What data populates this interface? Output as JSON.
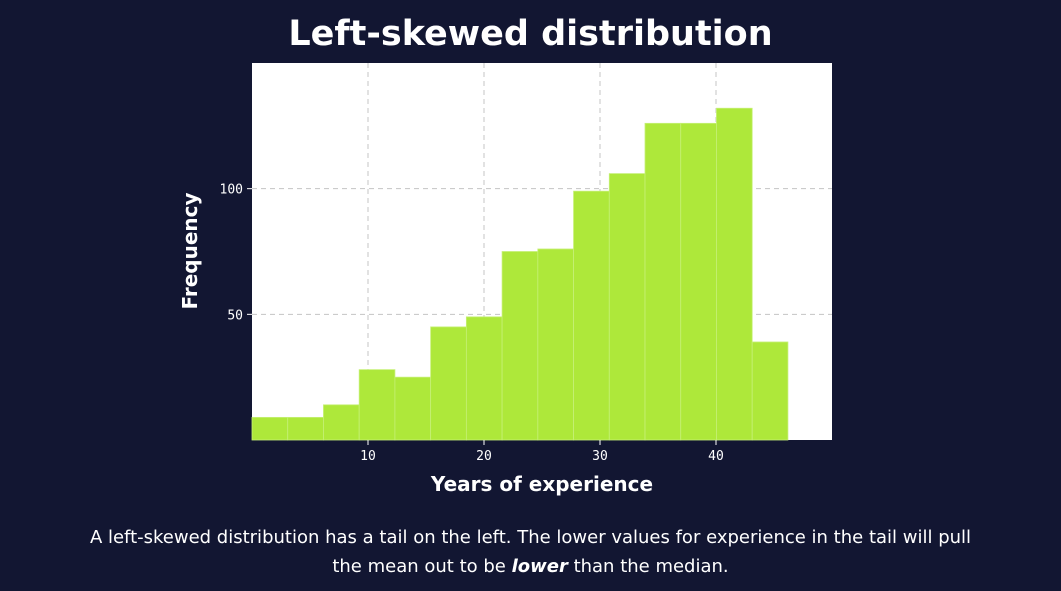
{
  "chart_data": {
    "type": "bar",
    "title": "Left-skewed distribution",
    "xlabel": "Years of experience",
    "ylabel": "Frequency",
    "xlim": [
      0,
      50
    ],
    "ylim": [
      0,
      150
    ],
    "xticks": [
      10,
      20,
      30,
      40
    ],
    "yticks": [
      50,
      100
    ],
    "xtick_labels": [
      "10",
      "20",
      "30",
      "40"
    ],
    "ytick_labels": [
      "50",
      "100"
    ],
    "grid": true,
    "bin_width": 3.08,
    "bin_start": 0,
    "values": [
      9,
      9,
      14,
      28,
      25,
      45,
      49,
      75,
      76,
      99,
      106,
      126,
      126,
      132,
      39
    ],
    "bar_color": "#aee83a"
  },
  "caption": {
    "before": "A left-skewed distribution has a tail on the left. The lower values for experience in the tail will pull the mean out to be ",
    "emphasis": "lower",
    "after": " than the median."
  },
  "colors": {
    "background": "#121632",
    "plot_background": "#ffffff",
    "grid": "#c4c4c4",
    "text": "#ffffff"
  }
}
